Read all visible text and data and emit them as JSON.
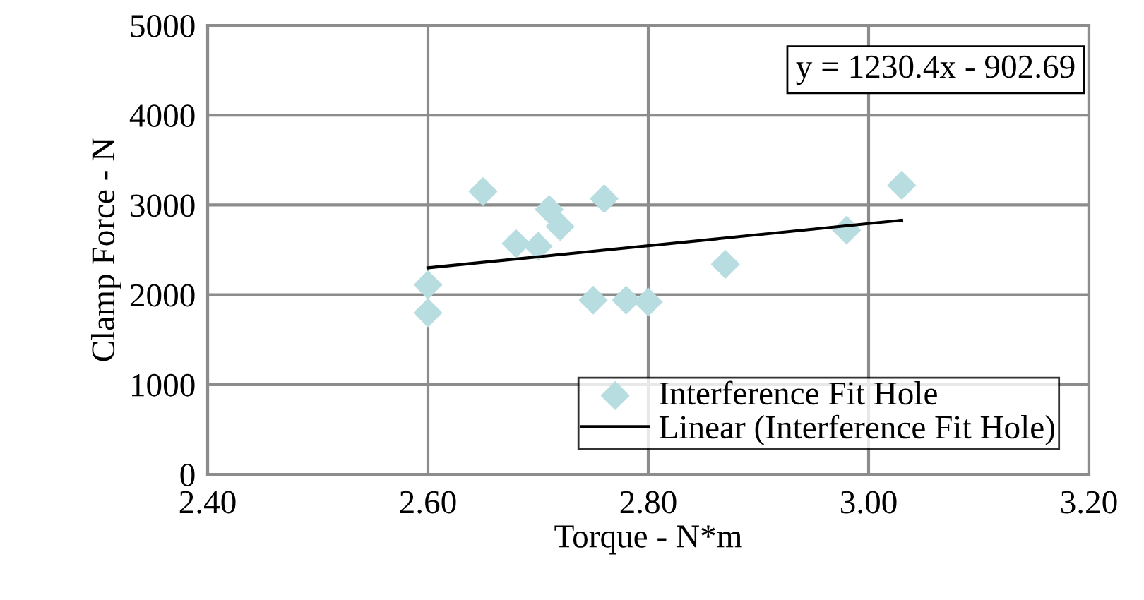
{
  "chart_data": {
    "type": "scatter",
    "xlabel": "Torque - N*m",
    "ylabel": "Clamp Force - N",
    "xlim": [
      2.4,
      3.2
    ],
    "xticks": [
      {
        "value": 2.4,
        "label": "2.40"
      },
      {
        "value": 2.6,
        "label": "2.60"
      },
      {
        "value": 2.8,
        "label": "2.80"
      },
      {
        "value": 3.0,
        "label": "3.00"
      },
      {
        "value": 3.2,
        "label": "3.20"
      }
    ],
    "ylim": [
      0,
      5000
    ],
    "yticks": [
      0,
      1000,
      2000,
      3000,
      4000,
      5000
    ],
    "grid": true,
    "legend": "bottom right",
    "annotations": [
      "y = 1230.4x - 902.69"
    ],
    "series": [
      {
        "name": "Interference Fit Hole",
        "marker": "diamond",
        "color": "#b7dde0",
        "x": [
          2.6,
          2.6,
          2.65,
          2.68,
          2.7,
          2.71,
          2.72,
          2.75,
          2.76,
          2.78,
          2.8,
          2.87,
          2.98,
          3.03
        ],
        "values": [
          2110,
          1800,
          3150,
          2570,
          2540,
          2950,
          2760,
          1940,
          3070,
          1940,
          1920,
          2340,
          2720,
          3220
        ]
      },
      {
        "name": "Linear (Interference Fit Hole)",
        "type": "line",
        "marker": "none",
        "line_style": "solid",
        "color": "#000000",
        "x": [
          2.6,
          3.03
        ],
        "values": [
          2300,
          2830
        ]
      }
    ]
  }
}
